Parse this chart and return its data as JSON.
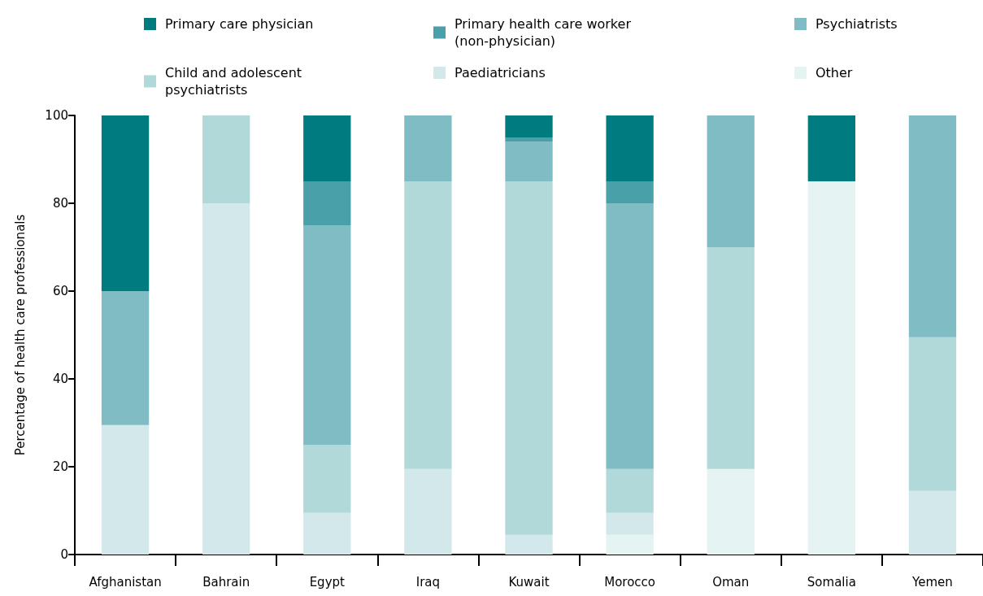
{
  "chart_data": {
    "type": "bar",
    "stacked": true,
    "ylabel": "Percentage of health care professionals",
    "categories": [
      "Afghanistan",
      "Bahrain",
      "Egypt",
      "Iraq",
      "Kuwait",
      "Morocco",
      "Oman",
      "Somalia",
      "Yemen"
    ],
    "series": [
      {
        "name": "Other",
        "color": "#e6f3f3",
        "values": [
          null,
          null,
          null,
          null,
          null,
          4.5,
          19.5,
          85,
          null
        ]
      },
      {
        "name": "Paediatricians",
        "color": "#d3e8ea",
        "values": [
          29.5,
          80,
          9.5,
          19.5,
          4.5,
          5,
          null,
          null,
          14.5
        ]
      },
      {
        "name": "Child and adolescent psychiatrists",
        "color": "#b2d9d9",
        "values": [
          null,
          20,
          15.5,
          65.5,
          80.5,
          10,
          50.5,
          null,
          35
        ]
      },
      {
        "name": "Psychiatrists",
        "color": "#80bcc3",
        "values": [
          30.5,
          null,
          50,
          15,
          9,
          60.5,
          30,
          null,
          50.5
        ]
      },
      {
        "name": "Primary health care worker (non-physician)",
        "color": "#4aa0a8",
        "values": [
          null,
          null,
          10,
          null,
          1,
          5,
          null,
          null,
          null
        ]
      },
      {
        "name": "Primary care physician",
        "color": "#007b80",
        "values": [
          40,
          null,
          15,
          null,
          5,
          15,
          null,
          15,
          null
        ]
      }
    ],
    "ylim": [
      0,
      100
    ],
    "yticks": [
      0,
      20,
      40,
      60,
      80,
      100
    ],
    "grid": false,
    "legend": "top"
  }
}
